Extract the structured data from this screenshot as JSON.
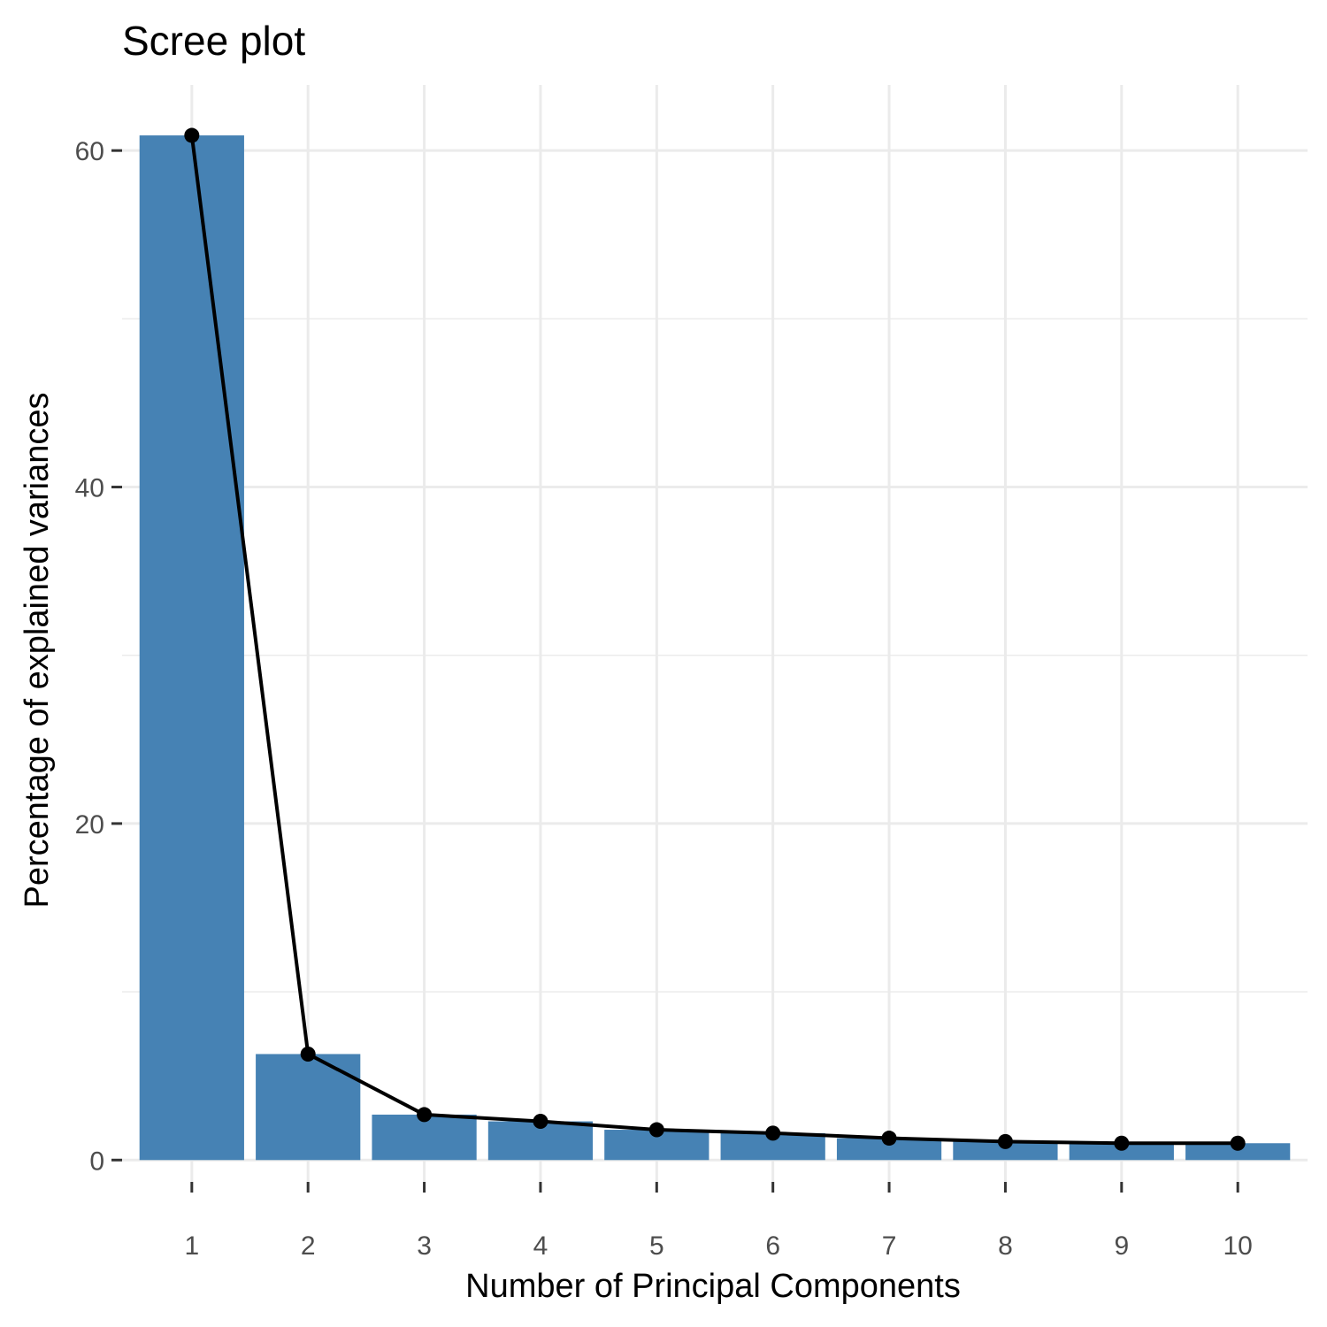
{
  "chart_data": {
    "type": "bar",
    "title": "Scree plot",
    "xlabel": "Number of Principal Components",
    "ylabel": "Percentage of explained variances",
    "categories": [
      "1",
      "2",
      "3",
      "4",
      "5",
      "6",
      "7",
      "8",
      "9",
      "10"
    ],
    "values": [
      60.9,
      6.3,
      2.7,
      2.3,
      1.8,
      1.6,
      1.3,
      1.1,
      1.0,
      1.0
    ],
    "line_overlay": true,
    "ylim": [
      -1.3,
      63.9
    ],
    "yticks": [
      0,
      20,
      40,
      60
    ],
    "grid": true,
    "colors": {
      "bar": "#4682B4",
      "line": "#000000",
      "point": "#000000"
    }
  }
}
